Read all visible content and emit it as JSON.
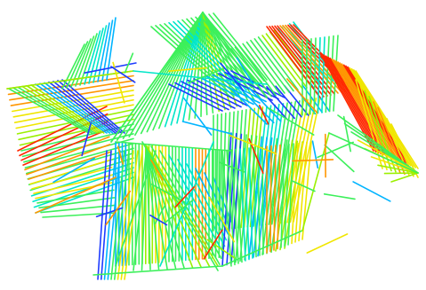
{
  "scene": {
    "subject": "wireframe-line-sculpture",
    "background_color": "#ffffff",
    "palette": [
      "#1e3cff",
      "#00b4ff",
      "#00e6c8",
      "#3cf05a",
      "#9bf000",
      "#f0e600",
      "#ff9600",
      "#ff2800"
    ],
    "dominant_color": "#3cf05a",
    "accent_colors": [
      "#ff2800",
      "#1e3cff"
    ]
  }
}
